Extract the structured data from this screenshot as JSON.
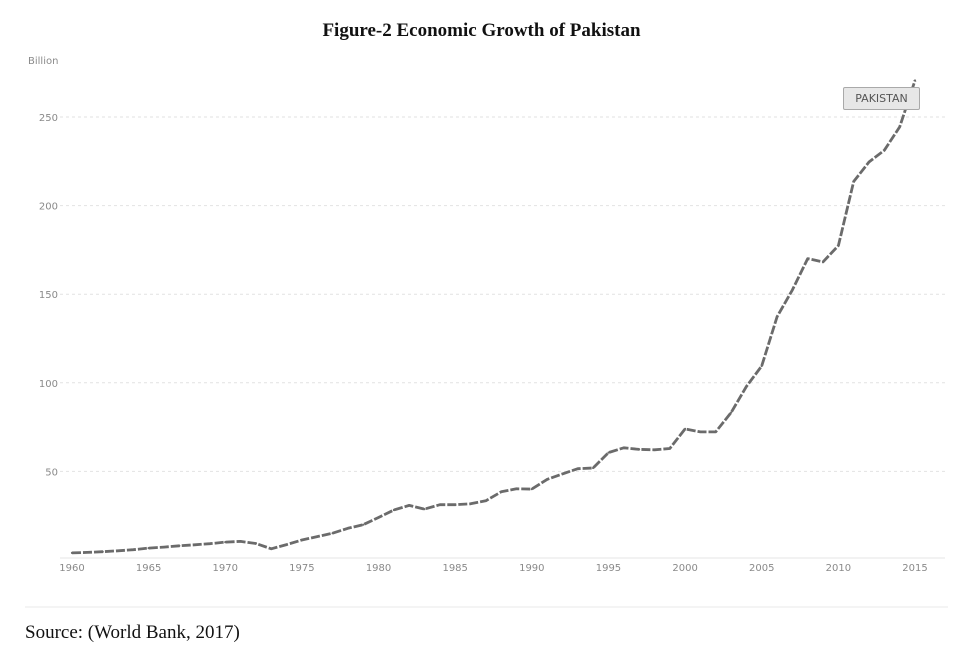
{
  "figure": {
    "title": "Figure-2 Economic Growth of Pakistan",
    "source": "Source: (World Bank, 2017)"
  },
  "chart_data": {
    "type": "line",
    "unit_label": "Billion",
    "x": [
      1960,
      1961,
      1962,
      1963,
      1964,
      1965,
      1966,
      1967,
      1968,
      1969,
      1970,
      1971,
      1972,
      1973,
      1974,
      1975,
      1976,
      1977,
      1978,
      1979,
      1980,
      1981,
      1982,
      1983,
      1984,
      1985,
      1986,
      1987,
      1988,
      1989,
      1990,
      1991,
      1992,
      1993,
      1994,
      1995,
      1996,
      1997,
      1998,
      1999,
      2000,
      2001,
      2002,
      2003,
      2004,
      2005,
      2006,
      2007,
      2008,
      2009,
      2010,
      2011,
      2012,
      2013,
      2014,
      2015
    ],
    "series": [
      {
        "name": "PAKISTAN",
        "values": [
          4,
          4.3,
          4.7,
          5.2,
          5.8,
          6.7,
          7.3,
          8,
          8.6,
          9.2,
          10.1,
          10.5,
          9.3,
          6.3,
          8.7,
          11.3,
          13.2,
          15.1,
          17.9,
          19.9,
          24,
          28.2,
          30.8,
          28.7,
          31.2,
          31.2,
          31.7,
          33.4,
          38.5,
          40.2,
          40,
          45.5,
          48.6,
          51.5,
          51.9,
          60.6,
          63.3,
          62.4,
          62.2,
          62.9,
          74,
          72.3,
          72.3,
          83.2,
          97.9,
          109.5,
          137.3,
          152.4,
          170.1,
          168.2,
          177.4,
          213.6,
          224.6,
          231.2,
          244.4,
          270.6
        ]
      }
    ],
    "xlim": [
      1960,
      2015
    ],
    "ylim": [
      0,
      270
    ],
    "x_ticks": [
      "1960",
      "1965",
      "1970",
      "1975",
      "1980",
      "1985",
      "1990",
      "1995",
      "2000",
      "2005",
      "2010",
      "2015"
    ],
    "y_ticks": [
      "50",
      "100",
      "150",
      "200",
      "250"
    ],
    "grid": "horizontal dashed",
    "line_style": "dashed",
    "line_color": "#6b6b6b",
    "legend_placement": "top-right"
  }
}
